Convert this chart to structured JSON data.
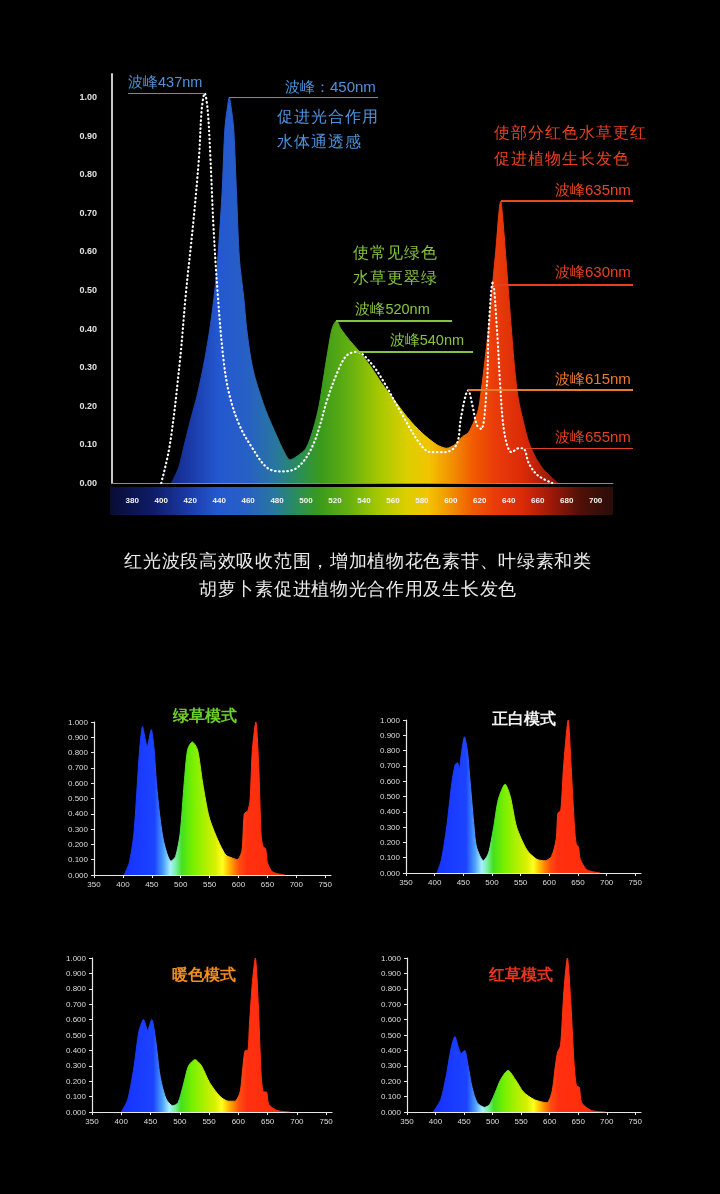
{
  "chart_data": [
    {
      "type": "area",
      "xlim": [
        366,
        712
      ],
      "xticks": [
        380,
        400,
        420,
        440,
        460,
        480,
        500,
        520,
        540,
        560,
        580,
        600,
        620,
        640,
        660,
        680,
        700
      ],
      "ylim": [
        0,
        1.06
      ],
      "yticks": [
        {
          "value": 0,
          "label": "0.00"
        },
        {
          "value": 0.1,
          "label": "0.10"
        },
        {
          "value": 0.2,
          "label": "0.20"
        },
        {
          "value": 0.3,
          "label": "0.30"
        },
        {
          "value": 0.4,
          "label": "0.40"
        },
        {
          "value": 0.5,
          "label": "0.50"
        },
        {
          "value": 0.6,
          "label": "0.60"
        },
        {
          "value": 0.7,
          "label": "0.70"
        },
        {
          "value": 0.8,
          "label": "0.80"
        },
        {
          "value": 0.9,
          "label": "0.90"
        },
        {
          "value": 1,
          "label": "1.00"
        }
      ],
      "marker": "none",
      "series": [
        {
          "x": [
            407,
            412,
            416,
            420,
            425,
            430,
            434,
            437,
            439,
            442,
            444,
            446,
            447,
            448,
            450,
            452,
            454,
            457,
            459,
            462,
            465,
            472,
            480,
            485,
            489,
            494,
            500,
            505,
            509,
            512,
            515,
            518,
            521,
            524,
            530,
            537,
            545,
            552,
            560,
            570,
            580,
            590,
            597,
            603,
            608,
            612,
            616,
            619,
            621,
            623,
            626,
            628,
            631,
            634.5,
            636,
            638.5,
            642,
            644,
            646.5,
            650,
            653.5,
            658,
            663,
            668,
            674
          ],
          "values": [
            0,
            0.04,
            0.1,
            0.16,
            0.23,
            0.32,
            0.41,
            0.5,
            0.58,
            0.75,
            0.92,
            0.98,
            1,
            0.98,
            0.92,
            0.75,
            0.58,
            0.48,
            0.4,
            0.32,
            0.27,
            0.19,
            0.12,
            0.08,
            0.06,
            0.07,
            0.09,
            0.14,
            0.2,
            0.27,
            0.34,
            0.4,
            0.42,
            0.4,
            0.37,
            0.34,
            0.3,
            0.26,
            0.22,
            0.17,
            0.13,
            0.1,
            0.09,
            0.1,
            0.12,
            0.13,
            0.16,
            0.19,
            0.24,
            0.3,
            0.4,
            0.48,
            0.6,
            0.73,
            0.68,
            0.56,
            0.39,
            0.3,
            0.22,
            0.16,
            0.11,
            0.07,
            0.04,
            0.02,
            0
          ]
        },
        {
          "type": "line",
          "color": "#ffffff",
          "line_style": "dotted",
          "x": [
            400,
            406,
            413,
            417,
            422,
            426,
            428,
            430,
            432,
            434,
            436,
            439,
            443,
            447,
            454,
            463,
            473,
            482,
            494,
            505,
            515,
            522,
            528,
            535,
            545,
            554,
            566,
            579,
            586,
            596,
            604,
            607,
            612,
            615,
            618,
            621,
            625,
            626,
            629,
            632,
            634,
            637,
            642,
            647,
            650,
            654,
            660,
            670
          ],
          "values": [
            0,
            0.1,
            0.32,
            0.49,
            0.67,
            0.84,
            0.97,
            1.01,
            0.97,
            0.84,
            0.67,
            0.49,
            0.32,
            0.23,
            0.15,
            0.09,
            0.04,
            0.03,
            0.04,
            0.1,
            0.22,
            0.29,
            0.33,
            0.34,
            0.31,
            0.26,
            0.18,
            0.1,
            0.08,
            0.08,
            0.1,
            0.17,
            0.24,
            0.2,
            0.15,
            0.14,
            0.26,
            0.39,
            0.52,
            0.39,
            0.26,
            0.13,
            0.08,
            0.09,
            0.09,
            0.05,
            0.02,
            0
          ]
        }
      ],
      "annotations": [
        {
          "text": "波峰437nm",
          "x": 430,
          "y": 1.01
        },
        "波峰：450nm",
        "促进光合作用",
        "水体通透感",
        "使常见绿色",
        "水草更翠绿",
        {
          "text": "波峰520nm",
          "x": 521,
          "y": 0.42
        },
        {
          "text": "波峰540nm",
          "x": 535,
          "y": 0.34
        },
        "使部分红色水草更红",
        "促进植物生长发色",
        "波峰635nm",
        "波峰630nm",
        "波峰615nm",
        {
          "text": "波峰655nm",
          "x": 650,
          "y": 0.09
        },
        "红光波段高效吸收范围，增加植物花色素苷、叶绿素和类胡萝卜素促进植物光合作用及生长发色"
      ]
    },
    {
      "type": "area",
      "title": "绿草模式",
      "xlim": [
        350,
        760
      ],
      "xticks": [
        350,
        400,
        450,
        500,
        550,
        600,
        650,
        700,
        750
      ],
      "ylim": [
        0,
        1
      ],
      "yticks": [
        {
          "value": 0,
          "label": "0.000"
        },
        {
          "value": 0.1,
          "label": "0.100"
        },
        {
          "value": 0.2,
          "label": "0.200"
        },
        {
          "value": 0.3,
          "label": "0.300"
        },
        {
          "value": 0.4,
          "label": "0.400"
        },
        {
          "value": 0.5,
          "label": "0.500"
        },
        {
          "value": 0.6,
          "label": "0.600"
        },
        {
          "value": 0.7,
          "label": "0.700"
        },
        {
          "value": 0.8,
          "label": "0.800"
        },
        {
          "value": 0.9,
          "label": "0.900"
        },
        {
          "value": 1,
          "label": "1.000"
        }
      ],
      "marker": "none",
      "x": [
        402,
        411,
        419,
        425,
        429,
        434,
        438,
        442,
        449,
        454,
        458,
        464,
        471,
        483,
        491,
        499,
        506,
        512,
        520,
        529,
        538,
        549,
        564,
        578,
        590,
        598,
        606,
        610,
        616,
        620,
        624,
        630,
        635,
        639,
        642,
        647,
        650,
        659,
        680
      ],
      "values": [
        0,
        0.08,
        0.27,
        0.6,
        0.82,
        0.97,
        0.9,
        0.84,
        0.95,
        0.82,
        0.6,
        0.38,
        0.21,
        0.09,
        0.12,
        0.27,
        0.6,
        0.82,
        0.87,
        0.82,
        0.6,
        0.38,
        0.23,
        0.13,
        0.11,
        0.1,
        0.16,
        0.4,
        0.42,
        0.49,
        0.82,
        1,
        0.71,
        0.27,
        0.19,
        0.17,
        0.08,
        0.02,
        0
      ]
    },
    {
      "type": "area",
      "title": "正白模式",
      "xlim": [
        350,
        760
      ],
      "xticks": [
        350,
        400,
        450,
        500,
        550,
        600,
        650,
        700,
        750
      ],
      "ylim": [
        0,
        1
      ],
      "yticks": [
        {
          "value": 0,
          "label": "0.000"
        },
        {
          "value": 0.1,
          "label": "0.100"
        },
        {
          "value": 0.2,
          "label": "0.200"
        },
        {
          "value": 0.3,
          "label": "0.300"
        },
        {
          "value": 0.4,
          "label": "0.400"
        },
        {
          "value": 0.5,
          "label": "0.500"
        },
        {
          "value": 0.6,
          "label": "0.600"
        },
        {
          "value": 0.7,
          "label": "0.700"
        },
        {
          "value": 0.8,
          "label": "0.800"
        },
        {
          "value": 0.9,
          "label": "0.900"
        },
        {
          "value": 1,
          "label": "1.000"
        }
      ],
      "marker": "none",
      "x": [
        404,
        412,
        421,
        430,
        436,
        440,
        443,
        446,
        452,
        457,
        462,
        468,
        473,
        485,
        494,
        503,
        511,
        523,
        532,
        543,
        561,
        578,
        593,
        604,
        612,
        615,
        620,
        625,
        633,
        638,
        644,
        647,
        651,
        654,
        666,
        689
      ],
      "values": [
        0,
        0.09,
        0.3,
        0.59,
        0.71,
        0.72,
        0.68,
        0.76,
        0.89,
        0.8,
        0.59,
        0.33,
        0.17,
        0.08,
        0.13,
        0.3,
        0.48,
        0.58,
        0.5,
        0.3,
        0.15,
        0.09,
        0.08,
        0.11,
        0.22,
        0.39,
        0.41,
        0.7,
        1,
        0.7,
        0.3,
        0.19,
        0.17,
        0.09,
        0.02,
        0
      ]
    },
    {
      "type": "area",
      "title": "暖色模式",
      "xlim": [
        350,
        760
      ],
      "xticks": [
        350,
        400,
        450,
        500,
        550,
        600,
        650,
        700,
        750
      ],
      "ylim": [
        0,
        1
      ],
      "yticks": [
        {
          "value": 0,
          "label": "0.000"
        },
        {
          "value": 0.1,
          "label": "0.100"
        },
        {
          "value": 0.2,
          "label": "0.200"
        },
        {
          "value": 0.3,
          "label": "0.300"
        },
        {
          "value": 0.4,
          "label": "0.400"
        },
        {
          "value": 0.5,
          "label": "0.500"
        },
        {
          "value": 0.6,
          "label": "0.600"
        },
        {
          "value": 0.7,
          "label": "0.700"
        },
        {
          "value": 0.8,
          "label": "0.800"
        },
        {
          "value": 0.9,
          "label": "0.900"
        },
        {
          "value": 1,
          "label": "1.000"
        }
      ],
      "marker": "none",
      "x": [
        400,
        411,
        422,
        430,
        438,
        445,
        452,
        459,
        466,
        476,
        488,
        497,
        507,
        515,
        526,
        537,
        551,
        569,
        583,
        594,
        603,
        608,
        612,
        616,
        619,
        624,
        629,
        634,
        639,
        643,
        648,
        652,
        666,
        688
      ],
      "values": [
        0,
        0.08,
        0.3,
        0.52,
        0.6,
        0.53,
        0.6,
        0.46,
        0.24,
        0.09,
        0.04,
        0.06,
        0.19,
        0.3,
        0.34,
        0.3,
        0.19,
        0.1,
        0.07,
        0.07,
        0.13,
        0.3,
        0.4,
        0.4,
        0.57,
        0.84,
        1,
        0.71,
        0.24,
        0.13,
        0.13,
        0.05,
        0.01,
        0
      ]
    },
    {
      "type": "area",
      "title": "红草模式",
      "xlim": [
        350,
        760
      ],
      "xticks": [
        350,
        400,
        450,
        500,
        550,
        600,
        650,
        700,
        750
      ],
      "ylim": [
        0,
        1
      ],
      "yticks": [
        {
          "value": 0,
          "label": "0.000"
        },
        {
          "value": 0.1,
          "label": "0.100"
        },
        {
          "value": 0.2,
          "label": "0.200"
        },
        {
          "value": 0.3,
          "label": "0.300"
        },
        {
          "value": 0.4,
          "label": "0.400"
        },
        {
          "value": 0.5,
          "label": "0.500"
        },
        {
          "value": 0.6,
          "label": "0.600"
        },
        {
          "value": 0.7,
          "label": "0.700"
        },
        {
          "value": 0.8,
          "label": "0.800"
        },
        {
          "value": 0.9,
          "label": "0.900"
        },
        {
          "value": 1,
          "label": "1.000"
        }
      ],
      "marker": "none",
      "x": [
        396,
        409,
        419,
        427,
        434,
        440,
        445,
        451,
        457,
        464,
        473,
        486,
        495,
        505,
        514,
        527,
        540,
        554,
        573,
        595,
        604,
        610,
        614,
        619,
        625,
        631,
        637,
        643,
        647,
        652,
        656,
        673,
        698
      ],
      "values": [
        0,
        0.08,
        0.24,
        0.41,
        0.49,
        0.42,
        0.38,
        0.4,
        0.3,
        0.16,
        0.06,
        0.03,
        0.05,
        0.13,
        0.21,
        0.27,
        0.21,
        0.13,
        0.08,
        0.06,
        0.13,
        0.3,
        0.39,
        0.43,
        0.79,
        1,
        0.71,
        0.3,
        0.17,
        0.16,
        0.06,
        0.01,
        0
      ]
    }
  ]
}
